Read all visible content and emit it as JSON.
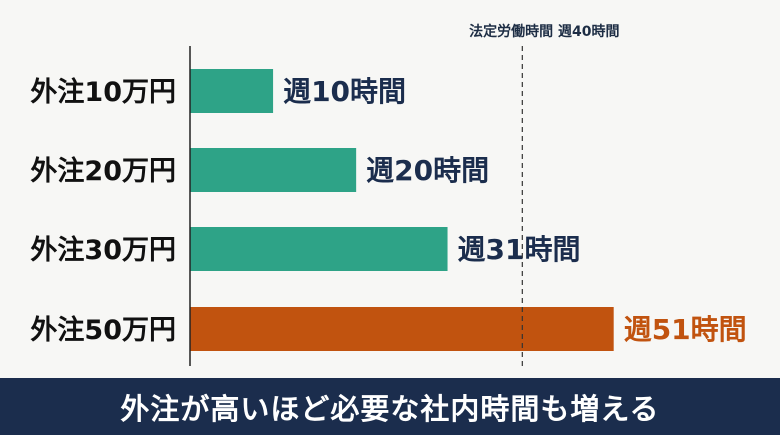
{
  "chart_data": {
    "type": "bar",
    "orientation": "horizontal",
    "categories": [
      "外注10万円",
      "外注20万円",
      "外注30万円",
      "外注50万円"
    ],
    "values": [
      10,
      20,
      31,
      51
    ],
    "data_labels": [
      "週10時間",
      "週20時間",
      "週31時間",
      "週51時間"
    ],
    "xlim": [
      0,
      52
    ],
    "grid": false,
    "reference_line": {
      "value": 40,
      "label": "法定労働時間 週40時間"
    },
    "colors": {
      "bar": "#2ea387",
      "highlight_bar": "#c1530f",
      "label": "#1b2d4d",
      "highlight_label": "#c1530f"
    },
    "highlight_index": 3
  },
  "caption": "外注が高いほど必要な社内時間も増える"
}
